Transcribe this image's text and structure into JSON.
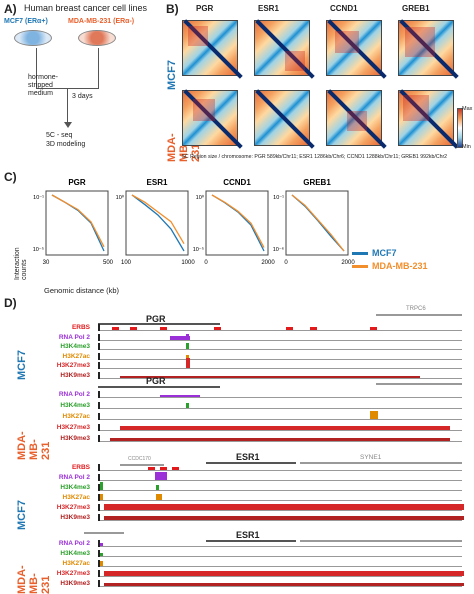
{
  "panelA": {
    "letter": "A)",
    "title": "Human breast cancer cell lines",
    "cell1": "MCF7 (ERα+)",
    "cell2": "MDA-MB-231 (ERα-)",
    "step1": "hormone-\nstripped\nmedium",
    "step2": "3 days",
    "step3": "5C - seq\n3D modeling"
  },
  "panelB": {
    "letter": "B)",
    "genes": [
      "PGR",
      "ESR1",
      "CCND1",
      "GREB1"
    ],
    "row1": "MCF7",
    "row2": "MDA-MB-231",
    "scale_max": "Max",
    "scale_min": "Min",
    "region_info": "5C Region size / chromosome:  PGR 589kb/Chr11;  ESR1 1286kb/Chr6;  CCND1 1288kb/Chr11;  GREB1 992kb/Chr2"
  },
  "panelC": {
    "letter": "C)",
    "ylabel": "Interaction counts",
    "xlabel": "Genomic distance (kb)",
    "legend": [
      {
        "name": "MCF7",
        "color": "#1f77b4"
      },
      {
        "name": "MDA-MB-231",
        "color": "#f28e2b"
      }
    ],
    "chart_data": [
      {
        "type": "line",
        "title": "PGR",
        "xticks": [
          "30",
          "500"
        ],
        "yticks": [
          "10⁻¹",
          "10⁻⁵"
        ],
        "series": [
          {
            "name": "MCF7",
            "values": [
              0.1,
              0.03,
              0.008,
              0.001,
              1e-05
            ]
          },
          {
            "name": "MDA-MB-231",
            "values": [
              0.1,
              0.03,
              0.009,
              0.0012,
              2e-05
            ]
          }
        ]
      },
      {
        "type": "line",
        "title": "ESR1",
        "xticks": [
          "100",
          "1000"
        ],
        "yticks": [
          "10⁰"
        ],
        "series": [
          {
            "name": "MCF7",
            "values": [
              1,
              0.4,
              0.15,
              0.04,
              0.005
            ]
          },
          {
            "name": "MDA-MB-231",
            "values": [
              1,
              0.5,
              0.2,
              0.08,
              0.01
            ]
          }
        ]
      },
      {
        "type": "line",
        "title": "CCND1",
        "xticks": [
          "0",
          "2000"
        ],
        "yticks": [
          "10⁰",
          "10⁻⁵"
        ],
        "series": [
          {
            "name": "MCF7",
            "values": [
              1,
              0.2,
              0.03,
              0.002,
              1e-05
            ]
          },
          {
            "name": "MDA-MB-231",
            "values": [
              1,
              0.22,
              0.035,
              0.003,
              2e-05
            ]
          }
        ]
      },
      {
        "type": "line",
        "title": "GREB1",
        "xticks": [
          "0",
          "2000"
        ],
        "yticks": [
          "10⁻¹",
          "10⁻⁶"
        ],
        "series": [
          {
            "name": "MCF7",
            "values": [
              0.1,
              0.01,
              0.0005,
              2e-05,
              1e-06
            ]
          },
          {
            "name": "MDA-MB-231",
            "values": [
              0.1,
              0.012,
              0.0006,
              3e-05,
              1e-06
            ]
          }
        ]
      }
    ]
  },
  "panelD": {
    "letter": "D)",
    "gene1": "PGR",
    "gene1_neighbor": "TRPC6",
    "gene2": "ESR1",
    "gene2_neighbor1": "CCDC170",
    "gene2_neighbor2": "SYNE1",
    "row_mcf7": "MCF7",
    "row_mda": "MDA-MB-231",
    "tracks_mcf7_pgr": [
      "ERBS",
      "RNA Pol 2",
      "H3K4me3",
      "H3K27ac",
      "H3K27me3",
      "H3K9me3"
    ],
    "tracks_mda_pgr": [
      "RNA Pol 2",
      "H3K4me3",
      "H3K27ac",
      "H3K27me3",
      "H3K9me3"
    ],
    "tracks_mcf7_esr1": [
      "ERBS",
      "RNA Pol 2",
      "H3K4me3",
      "H3K27ac",
      "H3K27me3",
      "H3K9me3"
    ],
    "tracks_mda_esr1": [
      "RNA Pol 2",
      "H3K4me3",
      "H3K27ac",
      "H3K27me3",
      "H3K9me3"
    ],
    "track_colors": {
      "ERBS": "#e31a1c",
      "RNA Pol 2": "#9b30d9",
      "H3K4me3": "#2ca02c",
      "H3K27ac": "#e08a00",
      "H3K27me3": "#d62728",
      "H3K9me3": "#b22222"
    }
  }
}
